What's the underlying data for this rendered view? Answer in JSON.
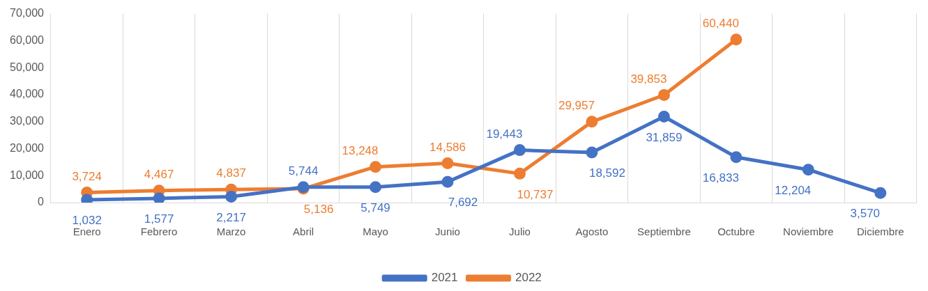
{
  "chart_data": {
    "type": "line",
    "categories": [
      "Enero",
      "Febrero",
      "Marzo",
      "Abril",
      "Mayo",
      "Junio",
      "Julio",
      "Agosto",
      "Septiembre",
      "Octubre",
      "Noviembre",
      "Diciembre"
    ],
    "series": [
      {
        "name": "2021",
        "color": "#4472c4",
        "values": [
          1032,
          1577,
          2217,
          5744,
          5749,
          7692,
          19443,
          18592,
          31859,
          16833,
          12204,
          3570
        ],
        "value_labels": [
          "1,032",
          "1,577",
          "2,217",
          "5,744",
          "5,749",
          "7,692",
          "19,443",
          "18,592",
          "31,859",
          "16,833",
          "12,204",
          "3,570"
        ]
      },
      {
        "name": "2022",
        "color": "#ed7d31",
        "values": [
          3724,
          4467,
          4837,
          5136,
          13248,
          14586,
          10737,
          29957,
          39853,
          60440,
          null,
          null
        ],
        "value_labels": [
          "3,724",
          "4,467",
          "4,837",
          "5,136",
          "13,248",
          "14,586",
          "10,737",
          "29,957",
          "39,853",
          "60,440",
          null,
          null
        ]
      }
    ],
    "ylim": [
      0,
      70000
    ],
    "yticks": [
      {
        "value": 0,
        "label": "0"
      },
      {
        "value": 10000,
        "label": "10,000"
      },
      {
        "value": 20000,
        "label": "20,000"
      },
      {
        "value": 30000,
        "label": "30,000"
      },
      {
        "value": 40000,
        "label": "40,000"
      },
      {
        "value": 50000,
        "label": "50,000"
      },
      {
        "value": 60000,
        "label": "60,000"
      },
      {
        "value": 70000,
        "label": "70,000"
      }
    ],
    "grid": "x",
    "legend": "bottom",
    "marker": "circle",
    "line_style": "solid"
  }
}
